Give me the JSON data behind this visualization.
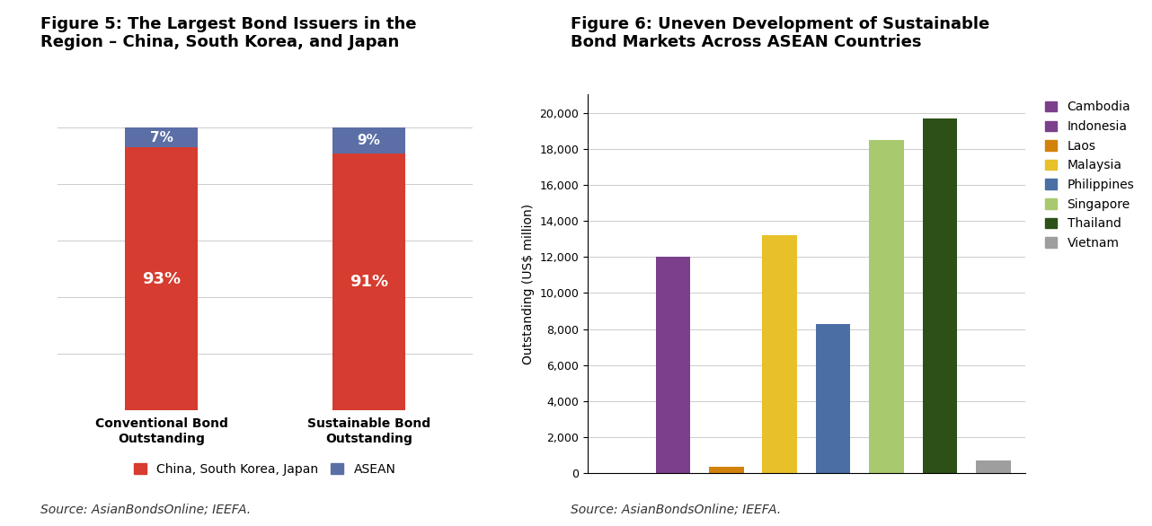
{
  "fig5_title": "Figure 5: The Largest Bond Issuers in the\nRegion – China, South Korea, and Japan",
  "fig5_categories": [
    "Conventional Bond\nOutstanding",
    "Sustainable Bond\nOutstanding"
  ],
  "fig5_red_values": [
    93,
    91
  ],
  "fig5_blue_values": [
    7,
    9
  ],
  "fig5_red_color": "#D63C2F",
  "fig5_blue_color": "#5B6FA6",
  "fig5_legend_red": "China, South Korea, Japan",
  "fig5_legend_blue": "ASEAN",
  "fig5_source": "Source: AsianBondsOnline; IEEFA.",
  "fig6_title": "Figure 6: Uneven Development of Sustainable\nBond Markets Across ASEAN Countries",
  "fig6_countries": [
    "Cambodia",
    "Indonesia",
    "Laos",
    "Malaysia",
    "Philippines",
    "Singapore",
    "Thailand",
    "Vietnam"
  ],
  "fig6_values": [
    0,
    12000,
    350,
    13200,
    8300,
    18500,
    19700,
    700
  ],
  "fig6_colors": [
    "#7B3F8C",
    "#7B3F8C",
    "#D2820A",
    "#E8C02A",
    "#4A6FA5",
    "#A8C96E",
    "#2D5016",
    "#9E9E9E"
  ],
  "fig6_ylabel": "Outstanding (US$ million)",
  "fig6_ylim": [
    0,
    21000
  ],
  "fig6_yticks": [
    0,
    2000,
    4000,
    6000,
    8000,
    10000,
    12000,
    14000,
    16000,
    18000,
    20000
  ],
  "fig6_source": "Source: AsianBondsOnline; IEEFA.",
  "background_color": "#FFFFFF",
  "title_fontsize": 13,
  "label_fontsize": 10,
  "tick_fontsize": 9,
  "source_fontsize": 10
}
